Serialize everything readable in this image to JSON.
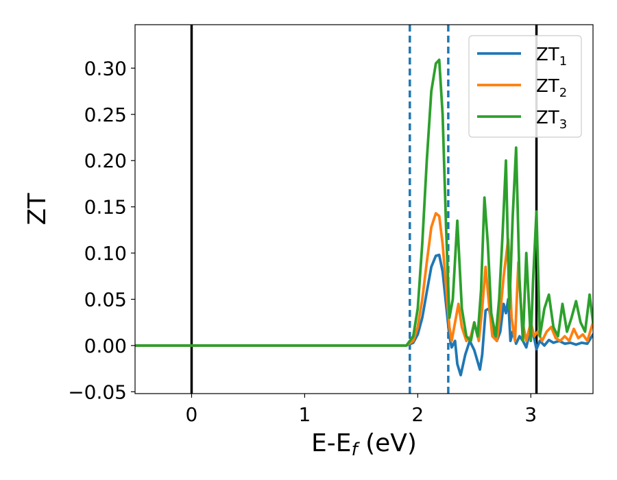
{
  "chart_data": {
    "type": "line",
    "xlabel_main": "E-E",
    "xlabel_sub": "f",
    "xlabel_unit": " (eV)",
    "ylabel": "ZT",
    "xlim": [
      -0.5,
      3.55
    ],
    "ylim": [
      -0.052,
      0.347
    ],
    "x_ticks": [
      0,
      1,
      2,
      3
    ],
    "x_tick_labels": [
      "0",
      "1",
      "2",
      "3"
    ],
    "y_ticks": [
      -0.05,
      0.0,
      0.05,
      0.1,
      0.15,
      0.2,
      0.25,
      0.3
    ],
    "y_tick_labels": [
      "−0.05",
      "0.00",
      "0.05",
      "0.10",
      "0.15",
      "0.20",
      "0.25",
      "0.30"
    ],
    "grid": false,
    "legend_position": "top-right",
    "vertical_lines": [
      {
        "x": 0.0,
        "style": "solid",
        "color": "#000000"
      },
      {
        "x": 3.05,
        "style": "solid",
        "color": "#000000"
      },
      {
        "x": 1.93,
        "style": "dashed",
        "color": "#1f77b4"
      },
      {
        "x": 2.27,
        "style": "dashed",
        "color": "#1f77b4"
      }
    ],
    "series": [
      {
        "name": "ZT",
        "name_sub": "1",
        "color": "#1f77b4",
        "x": [
          -0.5,
          1.9,
          1.96,
          2.0,
          2.04,
          2.08,
          2.12,
          2.16,
          2.19,
          2.22,
          2.25,
          2.28,
          2.3,
          2.33,
          2.35,
          2.38,
          2.42,
          2.46,
          2.5,
          2.55,
          2.57,
          2.6,
          2.63,
          2.66,
          2.7,
          2.73,
          2.76,
          2.78,
          2.8,
          2.82,
          2.84,
          2.87,
          2.9,
          2.93,
          2.96,
          3.0,
          3.03,
          3.05,
          3.08,
          3.12,
          3.16,
          3.2,
          3.25,
          3.3,
          3.35,
          3.4,
          3.45,
          3.5,
          3.55
        ],
        "y": [
          0.0,
          0.0,
          0.003,
          0.012,
          0.03,
          0.058,
          0.085,
          0.097,
          0.098,
          0.08,
          0.045,
          0.01,
          -0.002,
          0.005,
          -0.02,
          -0.032,
          -0.01,
          0.005,
          -0.005,
          -0.026,
          -0.01,
          0.038,
          0.04,
          0.02,
          0.005,
          0.015,
          0.045,
          0.035,
          0.05,
          0.005,
          0.015,
          0.002,
          0.01,
          0.005,
          -0.002,
          0.02,
          0.008,
          -0.004,
          0.005,
          0.0,
          0.006,
          0.003,
          0.005,
          0.002,
          0.003,
          0.001,
          0.003,
          0.002,
          0.012
        ]
      },
      {
        "name": "ZT",
        "name_sub": "2",
        "color": "#ff7f0e",
        "x": [
          -0.5,
          1.9,
          1.96,
          2.0,
          2.04,
          2.08,
          2.12,
          2.16,
          2.19,
          2.22,
          2.25,
          2.28,
          2.3,
          2.33,
          2.36,
          2.39,
          2.43,
          2.47,
          2.5,
          2.54,
          2.57,
          2.6,
          2.63,
          2.66,
          2.7,
          2.73,
          2.76,
          2.8,
          2.83,
          2.86,
          2.89,
          2.92,
          2.96,
          3.0,
          3.03,
          3.06,
          3.1,
          3.14,
          3.18,
          3.22,
          3.26,
          3.3,
          3.34,
          3.38,
          3.42,
          3.46,
          3.5,
          3.55
        ],
        "y": [
          0.0,
          0.0,
          0.005,
          0.02,
          0.05,
          0.09,
          0.128,
          0.143,
          0.14,
          0.11,
          0.065,
          0.02,
          0.005,
          0.025,
          0.045,
          0.02,
          0.005,
          0.01,
          0.025,
          0.005,
          0.04,
          0.085,
          0.045,
          0.01,
          0.005,
          0.035,
          0.075,
          0.115,
          0.03,
          0.005,
          0.09,
          0.03,
          0.005,
          0.025,
          0.01,
          0.015,
          0.005,
          0.015,
          0.02,
          0.008,
          0.005,
          0.01,
          0.005,
          0.018,
          0.008,
          0.012,
          0.005,
          0.025
        ]
      },
      {
        "name": "ZT",
        "name_sub": "3",
        "color": "#2ca02c",
        "x": [
          -0.5,
          1.9,
          1.96,
          2.0,
          2.04,
          2.08,
          2.12,
          2.16,
          2.19,
          2.22,
          2.25,
          2.28,
          2.31,
          2.35,
          2.39,
          2.43,
          2.47,
          2.5,
          2.53,
          2.56,
          2.59,
          2.62,
          2.65,
          2.69,
          2.72,
          2.75,
          2.78,
          2.81,
          2.84,
          2.87,
          2.9,
          2.93,
          2.96,
          3.0,
          3.02,
          3.05,
          3.08,
          3.12,
          3.16,
          3.2,
          3.24,
          3.28,
          3.32,
          3.36,
          3.4,
          3.44,
          3.48,
          3.52,
          3.55
        ],
        "y": [
          0.0,
          0.0,
          0.01,
          0.04,
          0.11,
          0.2,
          0.275,
          0.305,
          0.309,
          0.25,
          0.13,
          0.03,
          0.05,
          0.135,
          0.04,
          0.01,
          0.005,
          0.025,
          0.01,
          0.06,
          0.16,
          0.11,
          0.035,
          0.01,
          0.05,
          0.12,
          0.2,
          0.04,
          0.14,
          0.214,
          0.07,
          0.005,
          0.1,
          0.005,
          0.07,
          0.145,
          0.01,
          0.04,
          0.055,
          0.02,
          0.01,
          0.045,
          0.015,
          0.03,
          0.048,
          0.025,
          0.015,
          0.055,
          0.025
        ]
      }
    ]
  }
}
